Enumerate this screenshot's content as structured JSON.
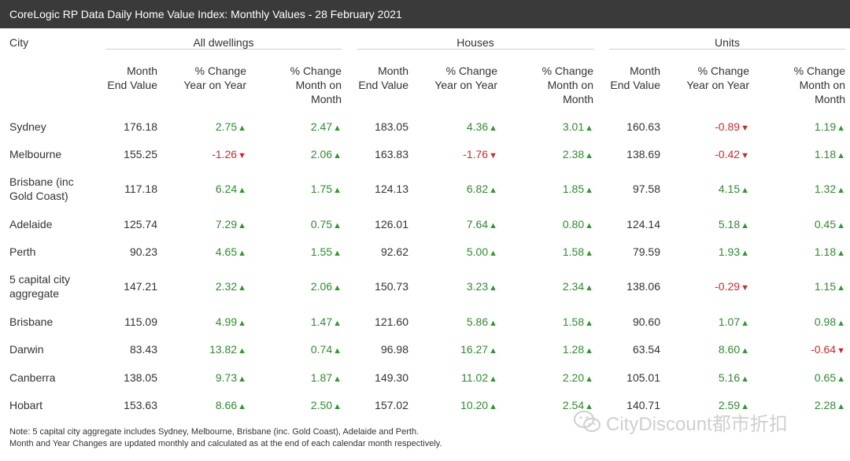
{
  "title": "CoreLogic RP Data Daily Home Value Index: Monthly Values - 28 February 2021",
  "headers": {
    "city": "City",
    "groups": [
      "All dwellings",
      "Houses",
      "Units"
    ],
    "columns": [
      [
        "Month",
        "End Value"
      ],
      [
        "% Change",
        "Year on Year"
      ],
      [
        "% Change",
        "Month on",
        "Month"
      ]
    ]
  },
  "rows": [
    {
      "city": [
        "Sydney"
      ],
      "values": [
        "176.18",
        "2.75",
        "2.47",
        "183.05",
        "4.36",
        "3.01",
        "160.63",
        "-0.89",
        "1.19"
      ]
    },
    {
      "city": [
        "Melbourne"
      ],
      "values": [
        "155.25",
        "-1.26",
        "2.06",
        "163.83",
        "-1.76",
        "2.38",
        "138.69",
        "-0.42",
        "1.18"
      ]
    },
    {
      "city": [
        "Brisbane (inc",
        "Gold Coast)"
      ],
      "values": [
        "117.18",
        "6.24",
        "1.75",
        "124.13",
        "6.82",
        "1.85",
        "97.58",
        "4.15",
        "1.32"
      ]
    },
    {
      "city": [
        "Adelaide"
      ],
      "values": [
        "125.74",
        "7.29",
        "0.75",
        "126.01",
        "7.64",
        "0.80",
        "124.14",
        "5.18",
        "0.45"
      ]
    },
    {
      "city": [
        "Perth"
      ],
      "values": [
        "90.23",
        "4.65",
        "1.55",
        "92.62",
        "5.00",
        "1.58",
        "79.59",
        "1.93",
        "1.18"
      ]
    },
    {
      "city": [
        "5 capital city",
        "aggregate"
      ],
      "values": [
        "147.21",
        "2.32",
        "2.06",
        "150.73",
        "3.23",
        "2.34",
        "138.06",
        "-0.29",
        "1.15"
      ]
    },
    {
      "city": [
        "Brisbane"
      ],
      "values": [
        "115.09",
        "4.99",
        "1.47",
        "121.60",
        "5.86",
        "1.58",
        "90.60",
        "1.07",
        "0.98"
      ]
    },
    {
      "city": [
        "Darwin"
      ],
      "values": [
        "83.43",
        "13.82",
        "0.74",
        "96.98",
        "16.27",
        "1.28",
        "63.54",
        "8.60",
        "-0.64"
      ]
    },
    {
      "city": [
        "Canberra"
      ],
      "values": [
        "138.05",
        "9.73",
        "1.87",
        "149.30",
        "11.02",
        "2.20",
        "105.01",
        "5.16",
        "0.65"
      ]
    },
    {
      "city": [
        "Hobart"
      ],
      "values": [
        "153.63",
        "8.66",
        "2.50",
        "157.02",
        "10.20",
        "2.54",
        "140.71",
        "2.59",
        "2.28"
      ]
    }
  ],
  "notes": [
    "Note: 5 capital city aggregate includes Sydney, Melbourne, Brisbane (inc. Gold Coast), Adelaide and Perth.",
    "Month and Year Changes are updated monthly and calculated as at the end of each calendar month respectively."
  ],
  "watermark": "CityDiscount都市折扣",
  "colors": {
    "positive": "#2e8b2e",
    "negative": "#cc2a2a",
    "title_bg": "#3a3a3a"
  }
}
